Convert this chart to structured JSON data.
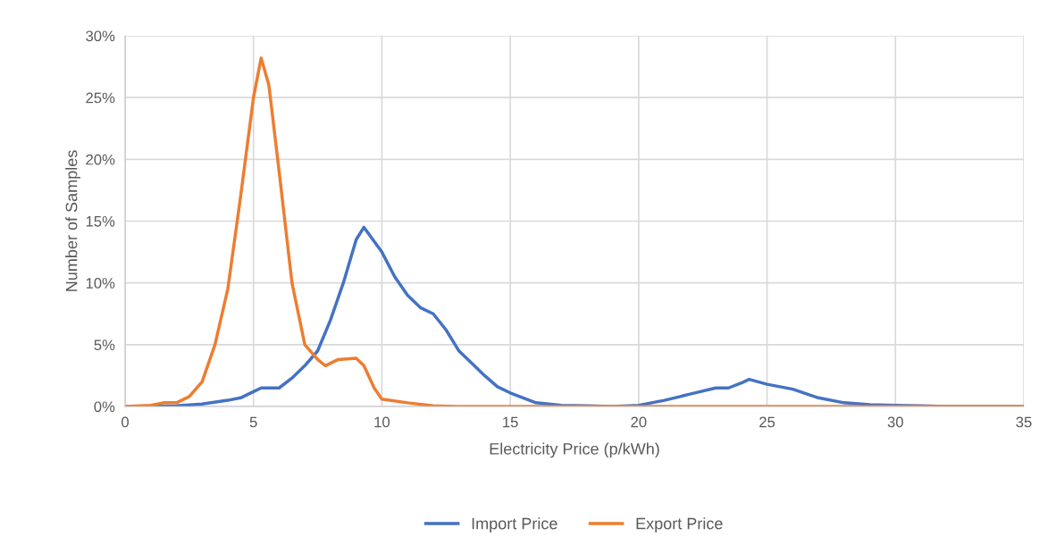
{
  "chart_data": {
    "type": "line",
    "xlabel": "Electricity Price (p/kWh)",
    "ylabel": "Number of Samples",
    "series": [
      {
        "name": "Import Price",
        "color": "#4472c4",
        "x": [
          0,
          1,
          2,
          3,
          4,
          4.5,
          5,
          5.3,
          6,
          6.5,
          7,
          7.5,
          8,
          8.5,
          9,
          9.3,
          10,
          10.5,
          11,
          11.5,
          12,
          12.5,
          13,
          13.5,
          14,
          14.5,
          15,
          16,
          17,
          18,
          19,
          20,
          21,
          22,
          23,
          23.5,
          24,
          24.3,
          25,
          26,
          27,
          28,
          29,
          30,
          31,
          32,
          35
        ],
        "values": [
          0,
          0,
          0.05,
          0.2,
          0.5,
          0.7,
          1.2,
          1.5,
          1.5,
          2.3,
          3.3,
          4.5,
          7,
          10,
          13.5,
          14.5,
          12.5,
          10.5,
          9,
          8,
          7.5,
          6.2,
          4.5,
          3.5,
          2.5,
          1.6,
          1.1,
          0.3,
          0.1,
          0.05,
          0,
          0.1,
          0.5,
          1,
          1.5,
          1.5,
          1.9,
          2.2,
          1.8,
          1.4,
          0.7,
          0.3,
          0.15,
          0.1,
          0.05,
          0,
          0
        ]
      },
      {
        "name": "Export Price",
        "color": "#ed7d31",
        "x": [
          0,
          1,
          1.5,
          2,
          2.5,
          3,
          3.5,
          4,
          4.5,
          5,
          5.3,
          5.6,
          6,
          6.5,
          7,
          7.5,
          7.8,
          8.3,
          9,
          9.3,
          9.7,
          10,
          11,
          12,
          13,
          35
        ],
        "values": [
          0,
          0.1,
          0.3,
          0.3,
          0.8,
          2,
          5,
          9.5,
          17,
          25,
          28.2,
          26,
          19,
          10,
          5,
          3.8,
          3.3,
          3.8,
          3.9,
          3.3,
          1.5,
          0.6,
          0.3,
          0.05,
          0,
          0
        ]
      }
    ],
    "xlim": [
      0,
      35
    ],
    "xticks": [
      0,
      5,
      10,
      15,
      20,
      25,
      30,
      35
    ],
    "ylim": [
      0,
      30
    ],
    "yticks": [
      {
        "value": 0,
        "label": "0%"
      },
      {
        "value": 5,
        "label": "5%"
      },
      {
        "value": 10,
        "label": "10%"
      },
      {
        "value": 15,
        "label": "15%"
      },
      {
        "value": 20,
        "label": "20%"
      },
      {
        "value": 25,
        "label": "25%"
      },
      {
        "value": 30,
        "label": "30%"
      }
    ],
    "grid": true,
    "legend": "bottom",
    "line_style": "solid",
    "marker": "none"
  }
}
